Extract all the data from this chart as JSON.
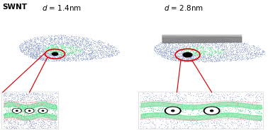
{
  "title_left": "SWNT",
  "label_left": "d = 1.4nm",
  "label_right": "d = 2.8nm",
  "bg_color": "#ffffff",
  "fig_width": 3.78,
  "fig_height": 1.84,
  "dpi": 100,
  "membrane_green": "#55dd88",
  "membrane_blue": "#8899cc",
  "membrane_pink": "#dd99aa",
  "nanotube_gray": "#777777",
  "nanotube_gray2": "#aaaaaa",
  "circle_red": "#dd0000"
}
